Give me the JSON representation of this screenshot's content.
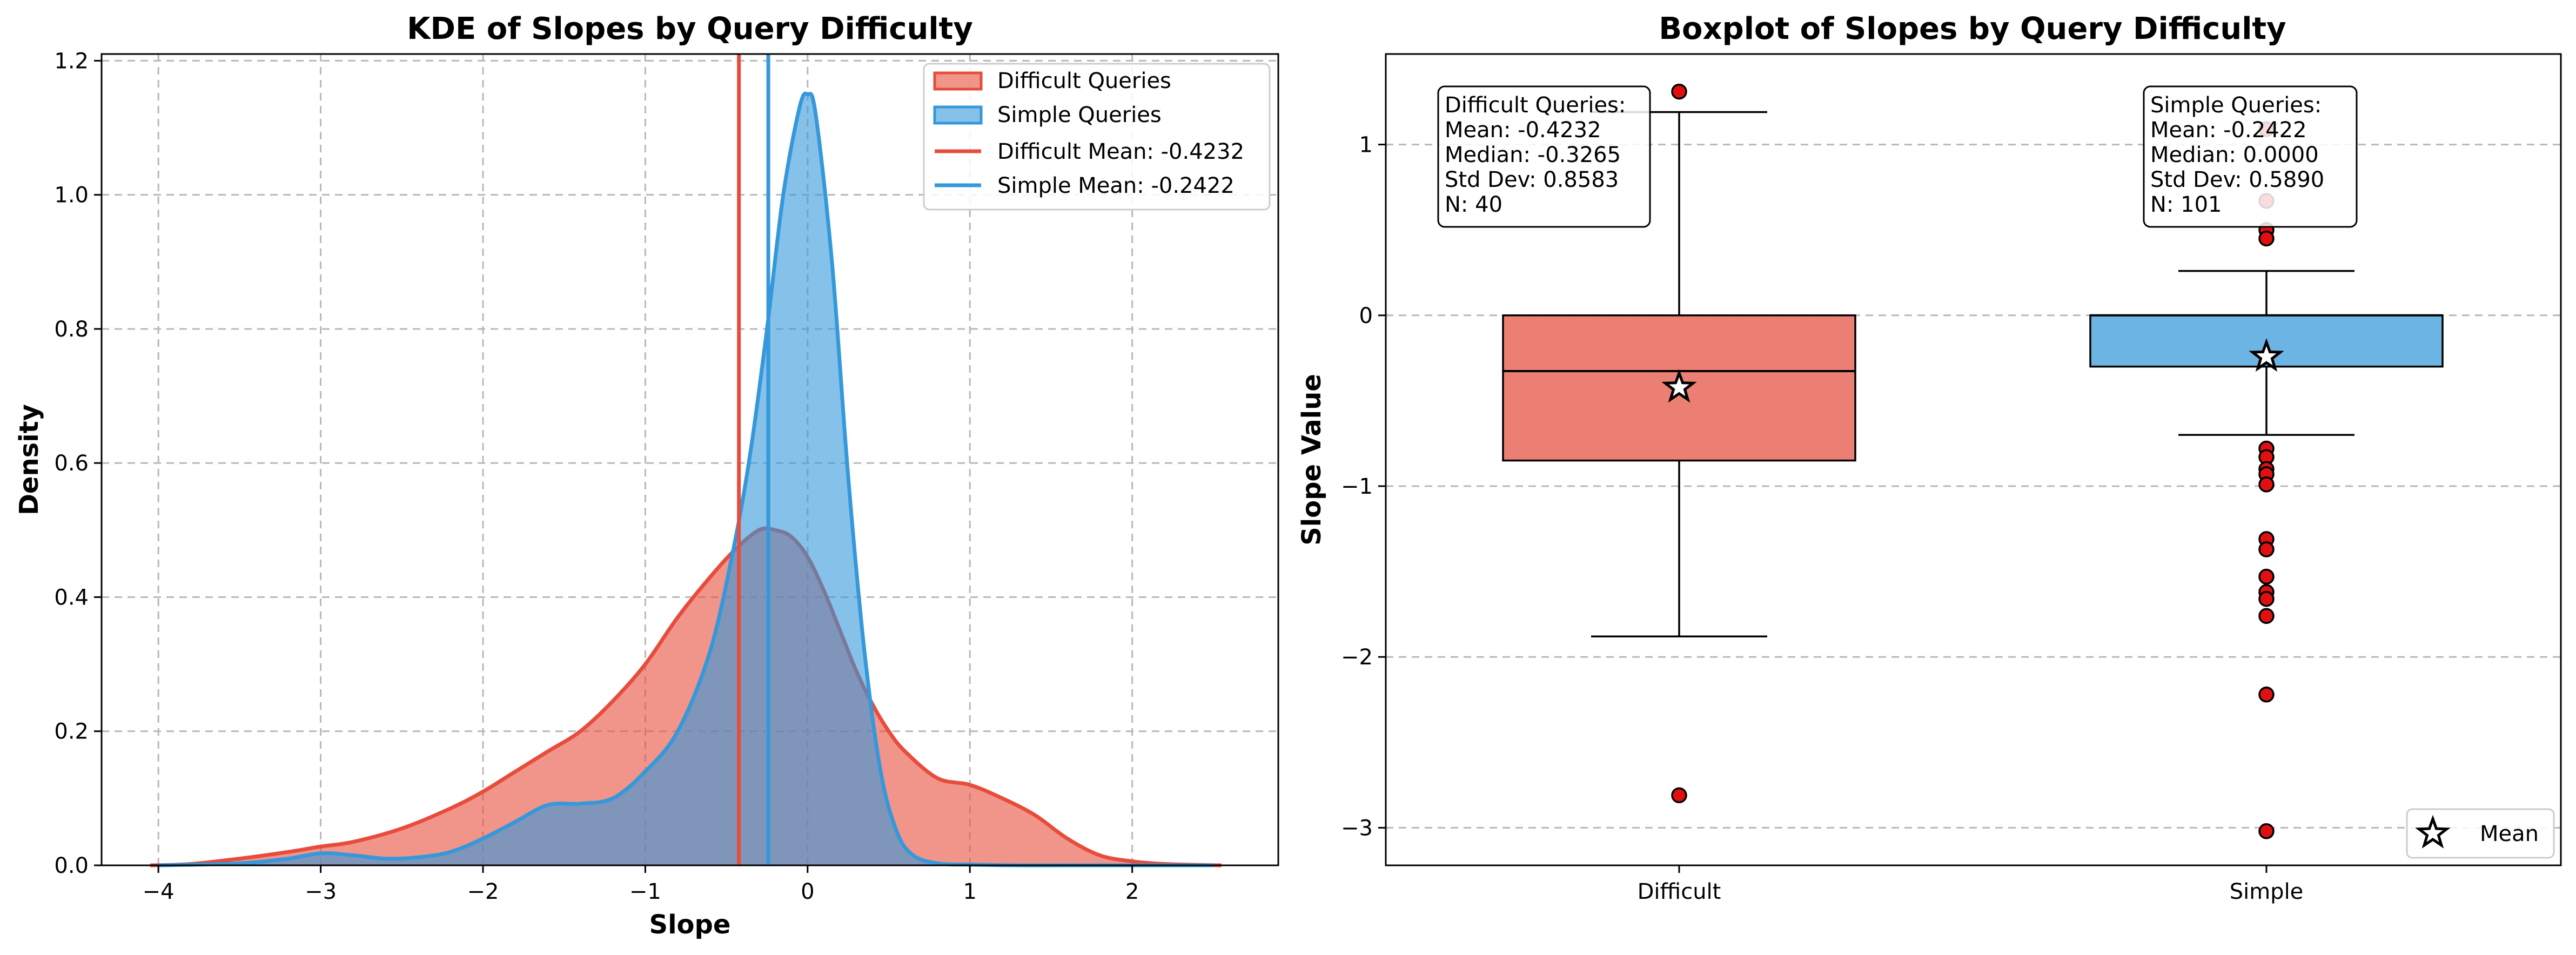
{
  "chart_data": [
    {
      "type": "area",
      "title": "KDE of Slopes by Query Difficulty",
      "xlabel": "Slope",
      "ylabel": "Density",
      "xlim": [
        -4.35,
        2.9
      ],
      "ylim": [
        0,
        1.21
      ],
      "xticks": [
        -4,
        -3,
        -2,
        -1,
        0,
        1,
        2
      ],
      "yticks": [
        0.0,
        0.2,
        0.4,
        0.6,
        0.8,
        1.0,
        1.2
      ],
      "grid": true,
      "legend_position": "top-right",
      "series": [
        {
          "name": "Difficult Queries",
          "color": "#e74c3c",
          "x": [
            -4.05,
            -3.8,
            -3.5,
            -3.2,
            -3.0,
            -2.8,
            -2.5,
            -2.2,
            -2.0,
            -1.8,
            -1.6,
            -1.4,
            -1.2,
            -1.0,
            -0.8,
            -0.6,
            -0.45,
            -0.3,
            -0.2,
            -0.1,
            0.0,
            0.1,
            0.2,
            0.3,
            0.4,
            0.5,
            0.6,
            0.8,
            1.0,
            1.2,
            1.4,
            1.6,
            1.8,
            2.0,
            2.2,
            2.55
          ],
          "y": [
            0.0,
            0.002,
            0.01,
            0.02,
            0.028,
            0.035,
            0.055,
            0.085,
            0.11,
            0.14,
            0.17,
            0.2,
            0.245,
            0.3,
            0.37,
            0.43,
            0.47,
            0.5,
            0.5,
            0.49,
            0.46,
            0.41,
            0.35,
            0.29,
            0.24,
            0.2,
            0.17,
            0.13,
            0.12,
            0.1,
            0.075,
            0.04,
            0.015,
            0.006,
            0.002,
            0.0
          ]
        },
        {
          "name": "Simple Queries",
          "color": "#3498db",
          "x": [
            -4.0,
            -3.5,
            -3.2,
            -3.0,
            -2.8,
            -2.6,
            -2.4,
            -2.2,
            -2.0,
            -1.8,
            -1.6,
            -1.4,
            -1.2,
            -1.0,
            -0.8,
            -0.6,
            -0.45,
            -0.35,
            -0.25,
            -0.15,
            -0.05,
            0.0,
            0.05,
            0.15,
            0.25,
            0.35,
            0.45,
            0.55,
            0.65,
            0.8,
            1.0,
            1.3,
            1.6,
            2.0,
            2.5
          ],
          "y": [
            0.0,
            0.003,
            0.01,
            0.018,
            0.015,
            0.01,
            0.012,
            0.02,
            0.04,
            0.065,
            0.09,
            0.092,
            0.1,
            0.14,
            0.2,
            0.32,
            0.48,
            0.62,
            0.8,
            1.0,
            1.13,
            1.15,
            1.12,
            0.9,
            0.58,
            0.32,
            0.14,
            0.05,
            0.015,
            0.003,
            0.001,
            0.0,
            0.0,
            0.0,
            0.0
          ]
        }
      ],
      "mean_lines": [
        {
          "label": "Difficult Mean: -0.4232",
          "value": -0.4232,
          "color": "#e74c3c"
        },
        {
          "label": "Simple Mean: -0.2422",
          "value": -0.2422,
          "color": "#3498db"
        }
      ]
    },
    {
      "type": "box",
      "title": "Boxplot of Slopes by Query Difficulty",
      "ylabel": "Slope Value",
      "xlabel": "",
      "categories": [
        "Difficult",
        "Simple"
      ],
      "ylim": [
        -3.22,
        1.53
      ],
      "yticks": [
        -3,
        -2,
        -1,
        0,
        1
      ],
      "yticklabels": [
        "−3",
        "−2",
        "−1",
        "0",
        "1"
      ],
      "grid": true,
      "legend_position": "bottom-right",
      "legend_label": "Mean",
      "boxes": [
        {
          "category": "Difficult",
          "color": "#ec7f73",
          "q1": -0.85,
          "median": -0.3265,
          "q3": 0.0,
          "whisker_low": -1.88,
          "whisker_high": 1.19,
          "mean": -0.4232,
          "outliers": [
            1.31,
            -2.81
          ],
          "stats": [
            "Difficult Queries:",
            "  Mean: -0.4232",
            "  Median: -0.3265",
            "  Std Dev: 0.8583",
            "  N: 40"
          ]
        },
        {
          "category": "Simple",
          "color": "#6cb4e4",
          "q1": -0.3,
          "median": 0.0,
          "q3": 0.0,
          "whisker_low": -0.7,
          "whisker_high": 0.26,
          "mean": -0.2422,
          "outliers": [
            1.09,
            0.67,
            0.5,
            0.45,
            -0.78,
            -0.83,
            -0.9,
            -0.93,
            -0.99,
            -1.31,
            -1.37,
            -1.53,
            -1.62,
            -1.66,
            -1.76,
            -2.22,
            -3.02
          ],
          "stats": [
            "Simple Queries:",
            "  Mean: -0.2422",
            "  Median: 0.0000",
            "  Std Dev: 0.5890",
            "  N: 101"
          ]
        }
      ]
    }
  ]
}
